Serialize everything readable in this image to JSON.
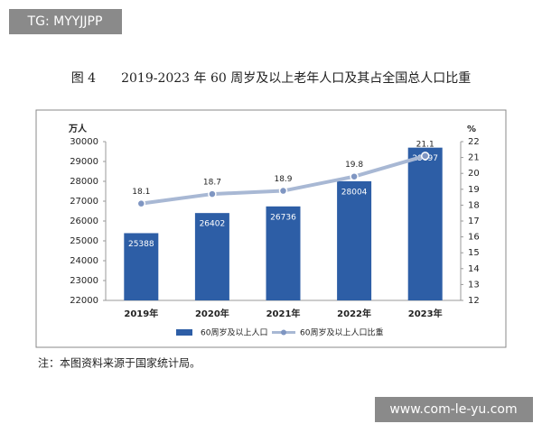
{
  "header": {
    "watermark": "TG: MYYJJPP",
    "caption": "图 4　　2019-2023 年 60 周岁及以上老年人口及其占全国总人口比重"
  },
  "chart_data": {
    "type": "bar_line",
    "y_label": "万人",
    "y2_label": "%",
    "categories": [
      "2019年",
      "2020年",
      "2021年",
      "2022年",
      "2023年"
    ],
    "series": [
      {
        "name": "60周岁及以上人口",
        "type": "bar",
        "color": "#2d5ea6",
        "values": [
          25388,
          26402,
          26736,
          28004,
          29697
        ]
      },
      {
        "name": "60周岁及以上人口比重",
        "type": "line",
        "axis": "y2",
        "color": "#a8b8d4",
        "values": [
          18.1,
          18.7,
          18.9,
          19.8,
          21.1
        ]
      }
    ],
    "ylim": [
      22000,
      30000
    ],
    "yticks": [
      22000,
      23000,
      24000,
      25000,
      26000,
      27000,
      28000,
      29000,
      30000
    ],
    "y2lim": [
      12,
      22
    ],
    "y2ticks": [
      12,
      13,
      14,
      15,
      16,
      17,
      18,
      19,
      20,
      21,
      22
    ],
    "grid": false
  },
  "note": "注：本图资料来源于国家统计局。",
  "footer": {
    "watermark": "www.com-le-yu.com"
  }
}
